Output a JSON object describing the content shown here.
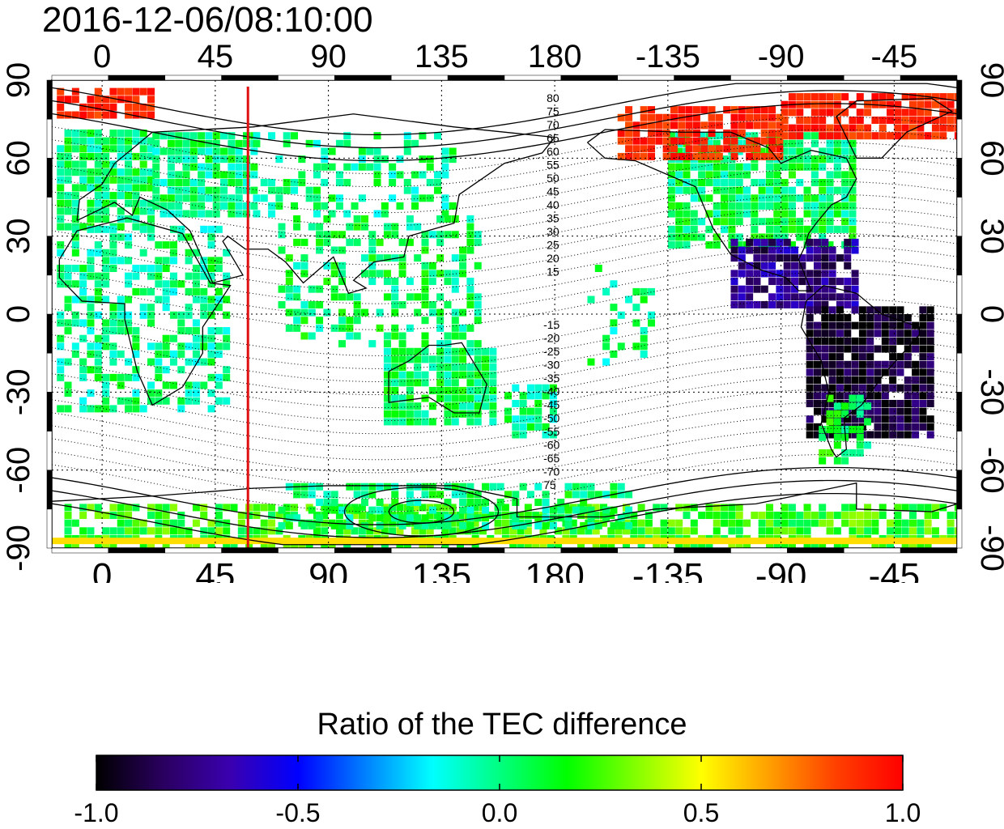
{
  "title": "2016-12-06/08:10:00",
  "map": {
    "x_ticks_top": [
      "0",
      "45",
      "90",
      "135",
      "180",
      "-135",
      "-90",
      "-45"
    ],
    "x_ticks_bottom": [
      "0",
      "45",
      "90",
      "135",
      "180",
      "-135",
      "-90",
      "-45"
    ],
    "y_ticks_left": [
      "90",
      "60",
      "30",
      "0",
      "-30",
      "-60",
      "-90"
    ],
    "y_ticks_right": [
      "90",
      "60",
      "30",
      "0",
      "-30",
      "-60",
      "-90"
    ],
    "lon_range": [
      -20,
      340
    ],
    "lat_range": [
      -90,
      90
    ],
    "grid": true,
    "marker_longitude": 58,
    "marker_color": "#e01010",
    "contour_labels_north": [
      "80",
      "75",
      "70",
      "65",
      "60",
      "55",
      "50",
      "45",
      "40",
      "35",
      "30",
      "25",
      "20",
      "15"
    ],
    "contour_labels_south": [
      "-15",
      "-20",
      "-25",
      "-30",
      "-35",
      "-40",
      "-45",
      "-50",
      "-55",
      "-60",
      "-65",
      "-70",
      "75"
    ]
  },
  "colorbar": {
    "title": "Ratio of the TEC difference",
    "ticks": [
      "-1.0",
      "-0.5",
      "0.0",
      "0.5",
      "1.0"
    ],
    "range": [
      -1.0,
      1.0
    ],
    "colors": [
      "#000000",
      "#2a0060",
      "#3a00b0",
      "#0000ff",
      "#0080ff",
      "#00ffff",
      "#00ff80",
      "#00ff00",
      "#80ff00",
      "#ffff00",
      "#ffa000",
      "#ff4000",
      "#ff0000"
    ]
  }
}
